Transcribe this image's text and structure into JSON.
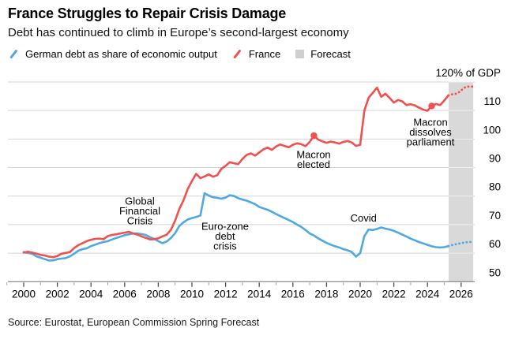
{
  "header": {
    "title": "France Struggles to Repair Crisis Damage",
    "subtitle": "Debt has continued to climb in Europe’s second-largest economy"
  },
  "legend": {
    "items": [
      {
        "label": "German debt as share of economic output",
        "marker": "line-swatch",
        "color": "#4fa8e0"
      },
      {
        "label": "France",
        "marker": "line-swatch",
        "color": "#f1504e"
      },
      {
        "label": "Forecast",
        "marker": "box-swatch",
        "color": "#cfcfcf"
      }
    ]
  },
  "source": "Source: Eurostat, European Commission Spring Forecast",
  "chart_data": {
    "type": "line",
    "title": "France Struggles to Repair Crisis Damage",
    "unit_label": "120% of GDP",
    "ylim": [
      50,
      120
    ],
    "xlim": [
      1999,
      2026.9
    ],
    "grid": true,
    "y_ticks": [
      110,
      100,
      90,
      80,
      70,
      60,
      50
    ],
    "x_ticks": [
      2000,
      2002,
      2004,
      2006,
      2008,
      2010,
      2012,
      2014,
      2016,
      2018,
      2020,
      2022,
      2024,
      2026
    ],
    "forecast_band": {
      "start": 2025.26,
      "end": 2026.72
    },
    "colors": {
      "band": "#d9d9d9",
      "grid": "#d4d4d4",
      "grid_on_band": "#efefef",
      "axis": "#808080",
      "tick_major": "#4d4d4d",
      "tick_minor": "#9e9e9e",
      "text": "#000000"
    },
    "series": [
      {
        "name": "German debt as share of economic output",
        "color": "#4fa8e0",
        "x": [
          2000.0,
          2000.25,
          2000.5,
          2000.75,
          2001.0,
          2001.25,
          2001.5,
          2001.75,
          2002.0,
          2002.25,
          2002.5,
          2002.75,
          2003.0,
          2003.25,
          2003.5,
          2003.75,
          2004.0,
          2004.25,
          2004.5,
          2004.75,
          2005.0,
          2005.25,
          2005.5,
          2005.75,
          2006.0,
          2006.25,
          2006.5,
          2006.75,
          2007.0,
          2007.25,
          2007.5,
          2007.75,
          2008.0,
          2008.25,
          2008.5,
          2008.75,
          2009.0,
          2009.25,
          2009.5,
          2009.75,
          2010.0,
          2010.25,
          2010.5,
          2010.75,
          2011.0,
          2011.25,
          2011.5,
          2011.75,
          2012.0,
          2012.25,
          2012.5,
          2012.75,
          2013.0,
          2013.25,
          2013.5,
          2013.75,
          2014.0,
          2014.25,
          2014.5,
          2014.75,
          2015.0,
          2015.25,
          2015.5,
          2015.75,
          2016.0,
          2016.25,
          2016.5,
          2016.75,
          2017.0,
          2017.25,
          2017.5,
          2017.75,
          2018.0,
          2018.25,
          2018.5,
          2018.75,
          2019.0,
          2019.25,
          2019.5,
          2019.75,
          2020.0,
          2020.25,
          2020.5,
          2020.75,
          2021.0,
          2021.25,
          2021.5,
          2021.75,
          2022.0,
          2022.25,
          2022.5,
          2022.75,
          2023.0,
          2023.25,
          2023.5,
          2023.75,
          2024.0,
          2024.25,
          2024.5,
          2024.75,
          2025.0,
          2025.25
        ],
        "values": [
          60.4,
          60.1,
          59.8,
          58.9,
          58.4,
          57.9,
          57.4,
          57.5,
          57.9,
          58.1,
          58.3,
          58.9,
          59.8,
          60.9,
          61.4,
          61.7,
          62.5,
          63.0,
          63.5,
          63.9,
          64.2,
          64.8,
          65.3,
          65.8,
          66.3,
          66.6,
          66.9,
          66.9,
          66.7,
          66.4,
          65.6,
          65.0,
          64.2,
          63.5,
          64.1,
          65.3,
          67.0,
          69.5,
          70.8,
          71.8,
          72.3,
          72.7,
          73.2,
          81.0,
          80.2,
          79.6,
          79.4,
          79.1,
          79.5,
          80.3,
          80.0,
          79.3,
          78.8,
          78.4,
          77.8,
          77.2,
          76.2,
          75.7,
          75.2,
          74.5,
          73.7,
          73.0,
          72.3,
          71.6,
          70.9,
          70.0,
          69.2,
          68.1,
          66.9,
          66.2,
          65.2,
          64.4,
          63.6,
          63.0,
          62.4,
          62.0,
          61.4,
          61.0,
          60.4,
          58.8,
          60.0,
          66.0,
          68.3,
          68.1,
          68.5,
          69.0,
          68.6,
          68.3,
          67.8,
          67.2,
          66.5,
          65.8,
          65.1,
          64.5,
          63.9,
          63.4,
          62.9,
          62.4,
          62.1,
          62.0,
          62.1,
          62.5
        ],
        "forecast_x": [
          2025.25,
          2025.5,
          2025.75,
          2026.0,
          2026.25,
          2026.5,
          2026.7
        ],
        "forecast_values": [
          62.5,
          62.9,
          63.2,
          63.5,
          63.8,
          63.9,
          64.0
        ],
        "markers": []
      },
      {
        "name": "France",
        "color": "#f1504e",
        "x": [
          2000.0,
          2000.25,
          2000.5,
          2000.75,
          2001.0,
          2001.25,
          2001.5,
          2001.75,
          2002.0,
          2002.25,
          2002.5,
          2002.75,
          2003.0,
          2003.25,
          2003.5,
          2003.75,
          2004.0,
          2004.25,
          2004.5,
          2004.75,
          2005.0,
          2005.25,
          2005.5,
          2005.75,
          2006.0,
          2006.25,
          2006.5,
          2006.75,
          2007.0,
          2007.25,
          2007.5,
          2007.75,
          2008.0,
          2008.25,
          2008.5,
          2008.75,
          2009.0,
          2009.25,
          2009.5,
          2009.75,
          2010.0,
          2010.25,
          2010.5,
          2010.75,
          2011.0,
          2011.25,
          2011.5,
          2011.75,
          2012.0,
          2012.25,
          2012.5,
          2012.75,
          2013.0,
          2013.25,
          2013.5,
          2013.75,
          2014.0,
          2014.25,
          2014.5,
          2014.75,
          2015.0,
          2015.25,
          2015.5,
          2015.75,
          2016.0,
          2016.25,
          2016.5,
          2016.75,
          2017.0,
          2017.25,
          2017.5,
          2017.75,
          2018.0,
          2018.25,
          2018.5,
          2018.75,
          2019.0,
          2019.25,
          2019.5,
          2019.75,
          2020.0,
          2020.25,
          2020.5,
          2020.75,
          2021.0,
          2021.25,
          2021.5,
          2021.75,
          2022.0,
          2022.25,
          2022.5,
          2022.75,
          2023.0,
          2023.25,
          2023.5,
          2023.75,
          2024.0,
          2024.25,
          2024.5,
          2024.75,
          2025.0,
          2025.25
        ],
        "values": [
          60.2,
          60.5,
          60.2,
          59.8,
          59.4,
          59.2,
          58.8,
          58.6,
          59.0,
          59.8,
          60.1,
          60.4,
          61.8,
          62.8,
          63.5,
          64.2,
          64.7,
          65.0,
          65.1,
          64.9,
          66.0,
          66.4,
          66.6,
          66.9,
          67.2,
          67.5,
          66.9,
          66.5,
          65.9,
          65.4,
          64.8,
          64.9,
          65.2,
          65.9,
          66.5,
          68.2,
          71.4,
          75.5,
          78.5,
          82.5,
          85.3,
          87.8,
          86.3,
          86.9,
          87.6,
          86.8,
          87.3,
          89.6,
          90.6,
          91.9,
          91.5,
          91.2,
          93.0,
          94.4,
          95.0,
          94.2,
          95.3,
          96.4,
          97.0,
          96.2,
          97.4,
          98.1,
          97.6,
          97.1,
          98.0,
          98.5,
          98.2,
          97.5,
          99.0,
          101.2,
          99.8,
          99.2,
          98.7,
          99.1,
          98.8,
          98.4,
          99.0,
          99.3,
          98.8,
          97.6,
          98.0,
          110.0,
          114.5,
          116.2,
          118.0,
          114.8,
          115.9,
          114.4,
          112.8,
          113.7,
          113.2,
          111.9,
          112.2,
          111.8,
          111.0,
          110.3,
          109.9,
          111.6,
          112.3,
          111.9,
          113.5,
          115.3
        ],
        "forecast_x": [
          2025.25,
          2025.45,
          2025.65,
          2025.85,
          2026.05,
          2026.25,
          2026.45,
          2026.7
        ],
        "forecast_values": [
          115.3,
          115.7,
          115.8,
          116.3,
          117.3,
          118.2,
          118.4,
          118.4
        ],
        "markers": [
          {
            "x": 2017.25,
            "value": 101.2
          },
          {
            "x": 2024.25,
            "value": 111.6
          }
        ]
      }
    ],
    "annotations": [
      {
        "lines": [
          "Global",
          "Financial",
          "Crisis"
        ],
        "x": 2006.9,
        "value": 78.3
      },
      {
        "lines": [
          "Euro-zone",
          "debt",
          "crisis"
        ],
        "x": 2011.97,
        "value": 69.4
      },
      {
        "lines": [
          "Macron",
          "elected"
        ],
        "x": 2017.23,
        "value": 94.6
      },
      {
        "lines": [
          "Covid"
        ],
        "x": 2020.2,
        "value": 72.3
      },
      {
        "lines": [
          "Macron",
          "dissolves",
          "parliament"
        ],
        "x": 2024.18,
        "value": 105.9
      }
    ]
  }
}
